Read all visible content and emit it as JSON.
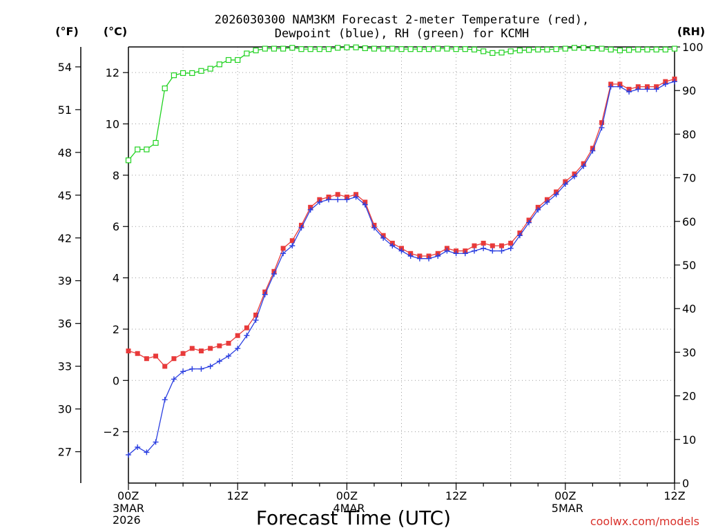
{
  "chart_data": {
    "type": "line",
    "title_line1": "2026030300 NAM3KM Forecast 2-meter Temperature (red),",
    "title_line2": "Dewpoint (blue), RH (green) for KCMH",
    "left_outer_unit": "(°F)",
    "left_inner_unit": "(°C)",
    "right_unit": "(RH)",
    "xlabel": "Forecast Time (UTC)",
    "credit": "coolwx.com/models",
    "colors": {
      "temperature": "#e83a3a",
      "dewpoint": "#2a3ee0",
      "rh": "#1fd21f",
      "grid": "#9a9a9a",
      "credit": "#d9302a"
    },
    "x_range_hours": [
      0,
      60
    ],
    "celsius_range": [
      -4,
      13
    ],
    "fahrenheit_range": [
      24.8,
      55.4
    ],
    "rh_range": [
      0,
      100
    ],
    "x_ticks": [
      {
        "hour": 0,
        "label": "00Z",
        "sub1": "3MAR",
        "sub2": "2026"
      },
      {
        "hour": 12,
        "label": "12Z",
        "sub1": "",
        "sub2": ""
      },
      {
        "hour": 24,
        "label": "00Z",
        "sub1": "4MAR",
        "sub2": ""
      },
      {
        "hour": 36,
        "label": "12Z",
        "sub1": "",
        "sub2": ""
      },
      {
        "hour": 48,
        "label": "00Z",
        "sub1": "5MAR",
        "sub2": ""
      },
      {
        "hour": 60,
        "label": "12Z",
        "sub1": "",
        "sub2": ""
      }
    ],
    "celsius_ticks": [
      "12",
      "10",
      "8",
      "6",
      "4",
      "2",
      "0",
      "−2"
    ],
    "celsius_tick_values": [
      12,
      10,
      8,
      6,
      4,
      2,
      0,
      -2
    ],
    "fahrenheit_ticks": [
      "54",
      "51",
      "48",
      "45",
      "42",
      "39",
      "36",
      "33",
      "30",
      "27"
    ],
    "fahrenheit_tick_values": [
      54,
      51,
      48,
      45,
      42,
      39,
      36,
      33,
      30,
      27
    ],
    "rh_ticks": [
      "100",
      "90",
      "80",
      "70",
      "60",
      "50",
      "40",
      "30",
      "20",
      "10",
      "0"
    ],
    "rh_tick_values": [
      100,
      90,
      80,
      70,
      60,
      50,
      40,
      30,
      20,
      10,
      0
    ],
    "series": [
      {
        "name": "Temperature (°C)",
        "axis": "celsius",
        "marker": "square",
        "values": [
          1.15,
          1.05,
          0.85,
          0.95,
          0.55,
          0.85,
          1.05,
          1.25,
          1.15,
          1.25,
          1.35,
          1.45,
          1.75,
          2.05,
          2.55,
          3.45,
          4.25,
          5.15,
          5.45,
          6.05,
          6.75,
          7.05,
          7.15,
          7.25,
          7.15,
          7.25,
          6.95,
          6.05,
          5.65,
          5.35,
          5.15,
          4.95,
          4.85,
          4.85,
          4.95,
          5.15,
          5.05,
          5.05,
          5.25,
          5.35,
          5.25,
          5.25,
          5.35,
          5.75,
          6.25,
          6.75,
          7.05,
          7.35,
          7.75,
          8.05,
          8.45,
          9.05,
          10.05,
          11.55,
          11.55,
          11.35,
          11.45,
          11.45,
          11.45,
          11.65,
          11.75
        ]
      },
      {
        "name": "Dewpoint (°C)",
        "axis": "celsius",
        "marker": "plus",
        "values": [
          -2.9,
          -2.6,
          -2.8,
          -2.4,
          -0.75,
          0.05,
          0.35,
          0.45,
          0.45,
          0.55,
          0.75,
          0.95,
          1.25,
          1.75,
          2.35,
          3.35,
          4.15,
          4.95,
          5.25,
          5.95,
          6.65,
          6.95,
          7.05,
          7.05,
          7.05,
          7.15,
          6.85,
          5.95,
          5.55,
          5.25,
          5.05,
          4.85,
          4.75,
          4.75,
          4.85,
          5.05,
          4.95,
          4.95,
          5.05,
          5.15,
          5.05,
          5.05,
          5.15,
          5.65,
          6.15,
          6.65,
          6.95,
          7.25,
          7.65,
          7.95,
          8.35,
          8.95,
          9.85,
          11.45,
          11.45,
          11.25,
          11.35,
          11.35,
          11.35,
          11.55,
          11.65
        ]
      },
      {
        "name": "RH (%)",
        "axis": "rh",
        "marker": "open-square",
        "values": [
          74,
          76.5,
          76.5,
          78,
          90.5,
          93.5,
          94,
          94,
          94.5,
          95,
          96,
          97,
          97,
          98.5,
          99.2,
          99.6,
          99.6,
          99.6,
          99.8,
          99.5,
          99.5,
          99.5,
          99.5,
          99.8,
          99.9,
          99.9,
          99.7,
          99.6,
          99.6,
          99.6,
          99.5,
          99.5,
          99.5,
          99.5,
          99.6,
          99.6,
          99.5,
          99.5,
          99.4,
          99,
          98.6,
          98.7,
          99,
          99.2,
          99.3,
          99.4,
          99.4,
          99.5,
          99.6,
          99.8,
          99.8,
          99.7,
          99.6,
          99.4,
          99.2,
          99.3,
          99.4,
          99.4,
          99.4,
          99.4,
          99.6
        ]
      }
    ]
  }
}
